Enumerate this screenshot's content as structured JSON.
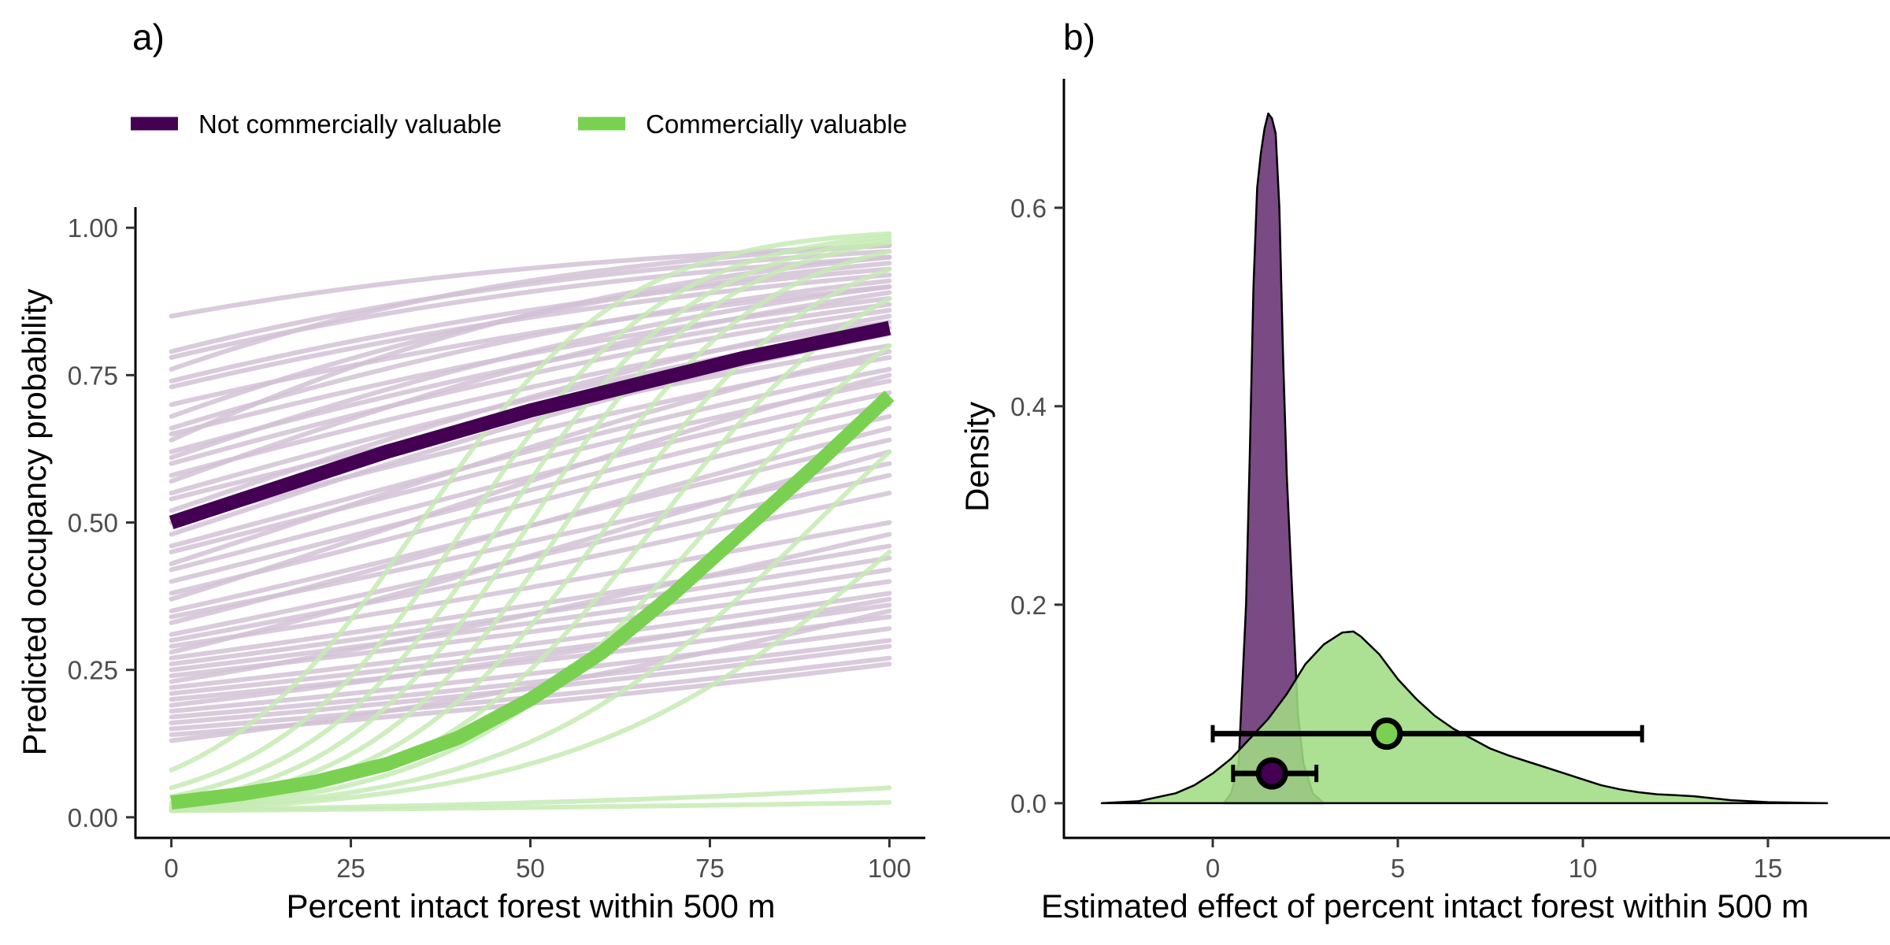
{
  "colors": {
    "not_valuable": "#440154",
    "valuable": "#7AD151",
    "thin_not_valuable": "#D2C2D6",
    "thin_valuable": "#C6EBB4",
    "density_not_valuable": "#794A84",
    "density_valuable": "#A1DC84",
    "axis": "#000000",
    "tick_text": "#4d4d4d"
  },
  "chart_data": [
    {
      "id": "a",
      "panel_label": "a)",
      "type": "line",
      "xlabel": "Percent intact forest within 500 m",
      "ylabel": "Predicted occupancy probability",
      "xlim": [
        -5,
        105
      ],
      "ylim": [
        -0.035,
        1.035
      ],
      "xticks": [
        0,
        25,
        50,
        75,
        100
      ],
      "yticks": [
        0.0,
        0.25,
        0.5,
        0.75,
        1.0
      ],
      "xtick_labels": [
        "0",
        "25",
        "50",
        "75",
        "100"
      ],
      "ytick_labels": [
        "0.00",
        "0.25",
        "0.50",
        "0.75",
        "1.00"
      ],
      "grid": false,
      "legend_position": "top-left",
      "legend": [
        {
          "label": "Not commercially valuable",
          "group": "not_valuable"
        },
        {
          "label": "Commercially valuable",
          "group": "valuable"
        }
      ],
      "series": [
        {
          "name": "Not commercially valuable",
          "group": "not_valuable",
          "role": "mean",
          "x": [
            0,
            10,
            20,
            30,
            40,
            50,
            60,
            70,
            80,
            90,
            100
          ],
          "y": [
            0.5,
            0.54,
            0.58,
            0.62,
            0.655,
            0.69,
            0.72,
            0.75,
            0.78,
            0.805,
            0.83
          ]
        },
        {
          "name": "Commercially valuable",
          "group": "valuable",
          "role": "mean",
          "x": [
            0,
            10,
            20,
            30,
            40,
            50,
            60,
            70,
            80,
            90,
            100
          ],
          "y": [
            0.025,
            0.04,
            0.06,
            0.09,
            0.135,
            0.2,
            0.28,
            0.38,
            0.49,
            0.6,
            0.715
          ]
        }
      ],
      "species_curves": {
        "not_valuable": [
          [
            0.85,
            0.97
          ],
          [
            0.79,
            0.96
          ],
          [
            0.78,
            0.95
          ],
          [
            0.76,
            0.97
          ],
          [
            0.74,
            0.93
          ],
          [
            0.73,
            0.92
          ],
          [
            0.7,
            0.9
          ],
          [
            0.68,
            0.94
          ],
          [
            0.66,
            0.91
          ],
          [
            0.65,
            0.88
          ],
          [
            0.64,
            0.95
          ],
          [
            0.62,
            0.87
          ],
          [
            0.61,
            0.9
          ],
          [
            0.6,
            0.86
          ],
          [
            0.58,
            0.84
          ],
          [
            0.57,
            0.89
          ],
          [
            0.55,
            0.83
          ],
          [
            0.54,
            0.8
          ],
          [
            0.52,
            0.85
          ],
          [
            0.5,
            0.78
          ],
          [
            0.48,
            0.82
          ],
          [
            0.46,
            0.76
          ],
          [
            0.45,
            0.74
          ],
          [
            0.43,
            0.79
          ],
          [
            0.42,
            0.72
          ],
          [
            0.4,
            0.7
          ],
          [
            0.38,
            0.68
          ],
          [
            0.37,
            0.75
          ],
          [
            0.35,
            0.64
          ],
          [
            0.34,
            0.6
          ],
          [
            0.33,
            0.66
          ],
          [
            0.31,
            0.58
          ],
          [
            0.3,
            0.55
          ],
          [
            0.29,
            0.5
          ],
          [
            0.28,
            0.62
          ],
          [
            0.27,
            0.46
          ],
          [
            0.26,
            0.44
          ],
          [
            0.25,
            0.42
          ],
          [
            0.24,
            0.4
          ],
          [
            0.23,
            0.48
          ],
          [
            0.22,
            0.38
          ],
          [
            0.21,
            0.36
          ],
          [
            0.2,
            0.34
          ],
          [
            0.19,
            0.37
          ],
          [
            0.18,
            0.32
          ],
          [
            0.17,
            0.3
          ],
          [
            0.16,
            0.29
          ],
          [
            0.15,
            0.27
          ],
          [
            0.14,
            0.26
          ],
          [
            0.13,
            0.35
          ]
        ],
        "valuable": [
          [
            0.08,
            0.99
          ],
          [
            0.05,
            0.985
          ],
          [
            0.035,
            0.98
          ],
          [
            0.025,
            0.975
          ],
          [
            0.02,
            0.96
          ],
          [
            0.017,
            0.93
          ],
          [
            0.015,
            0.88
          ],
          [
            0.014,
            0.8
          ],
          [
            0.013,
            0.62
          ],
          [
            0.012,
            0.45
          ],
          [
            0.012,
            0.05
          ],
          [
            0.011,
            0.025
          ]
        ]
      }
    },
    {
      "id": "b",
      "panel_label": "b)",
      "type": "area",
      "xlabel": "Estimated effect of percent intact forest within 500 m",
      "ylabel": "Density",
      "xlim": [
        -4,
        17.5
      ],
      "ylim": [
        -0.035,
        0.73
      ],
      "xticks": [
        0,
        5,
        10,
        15
      ],
      "yticks": [
        0.0,
        0.2,
        0.4,
        0.6
      ],
      "xtick_labels": [
        "0",
        "5",
        "10",
        "15"
      ],
      "ytick_labels": [
        "0.0",
        "0.2",
        "0.4",
        "0.6"
      ],
      "grid": false,
      "series": [
        {
          "name": "Not commercially valuable",
          "group": "not_valuable",
          "role": "density",
          "x": [
            0.3,
            0.5,
            0.7,
            0.9,
            1.0,
            1.1,
            1.2,
            1.3,
            1.4,
            1.5,
            1.6,
            1.7,
            1.8,
            1.9,
            2.0,
            2.1,
            2.2,
            2.3,
            2.45,
            2.7,
            3.0
          ],
          "y": [
            0.0,
            0.01,
            0.04,
            0.2,
            0.35,
            0.52,
            0.62,
            0.655,
            0.68,
            0.695,
            0.69,
            0.675,
            0.6,
            0.45,
            0.33,
            0.25,
            0.17,
            0.09,
            0.04,
            0.01,
            0.0
          ]
        },
        {
          "name": "Commercially valuable",
          "group": "valuable",
          "role": "density",
          "x": [
            -3.0,
            -2.0,
            -1.0,
            -0.5,
            0.0,
            0.5,
            1.0,
            1.5,
            2.0,
            2.5,
            3.0,
            3.5,
            3.8,
            4.0,
            4.5,
            5.0,
            5.5,
            6.0,
            6.5,
            7.0,
            7.5,
            8.0,
            8.5,
            9.0,
            9.5,
            10.0,
            10.5,
            11.0,
            11.5,
            12.0,
            12.5,
            13.0,
            13.5,
            14.0,
            15.0,
            16.0,
            16.6
          ],
          "y": [
            0.0,
            0.002,
            0.01,
            0.018,
            0.03,
            0.045,
            0.065,
            0.085,
            0.11,
            0.14,
            0.16,
            0.172,
            0.173,
            0.168,
            0.15,
            0.125,
            0.105,
            0.088,
            0.075,
            0.065,
            0.055,
            0.048,
            0.042,
            0.036,
            0.03,
            0.024,
            0.018,
            0.014,
            0.011,
            0.009,
            0.008,
            0.007,
            0.005,
            0.003,
            0.001,
            0.0003,
            0.0
          ]
        }
      ],
      "point_ranges": [
        {
          "name": "Commercially valuable",
          "group": "valuable",
          "estimate": 4.7,
          "lower": 0.0,
          "upper": 11.6,
          "y": 0.07
        },
        {
          "name": "Not commercially valuable",
          "group": "not_valuable",
          "estimate": 1.6,
          "lower": 0.55,
          "upper": 2.8,
          "y": 0.03
        }
      ]
    }
  ]
}
